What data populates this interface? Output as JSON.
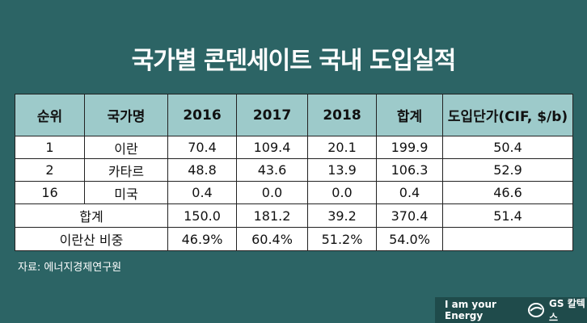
{
  "title": "국가별 콘덴세이트 국내 도입실적",
  "source": "자료: 에너지경제연구원",
  "brand": {
    "slogan": "I am your Energy",
    "logo_text": "GS 칼텍스"
  },
  "colors": {
    "background": "#2c6465",
    "header": "#9dcaca",
    "brand_bar": "#1f4b4b"
  },
  "chart_data": {
    "type": "table",
    "columns": [
      "순위",
      "국가명",
      "2016",
      "2017",
      "2018",
      "합계",
      "도입단가(CIF, $/b)"
    ],
    "rows": [
      [
        "1",
        "이란",
        "70.4",
        "109.4",
        "20.1",
        "199.9",
        "50.4"
      ],
      [
        "2",
        "카타르",
        "48.8",
        "43.6",
        "13.9",
        "106.3",
        "52.9"
      ],
      [
        "16",
        "미국",
        "0.4",
        "0.0",
        "0.0",
        "0.4",
        "46.6"
      ]
    ],
    "total": {
      "label": "합계",
      "values": [
        "150.0",
        "181.2",
        "39.2",
        "370.4",
        "51.4"
      ]
    },
    "share": {
      "label": "이란산 비중",
      "values": [
        "46.9%",
        "60.4%",
        "51.2%",
        "54.0%",
        ""
      ]
    }
  }
}
